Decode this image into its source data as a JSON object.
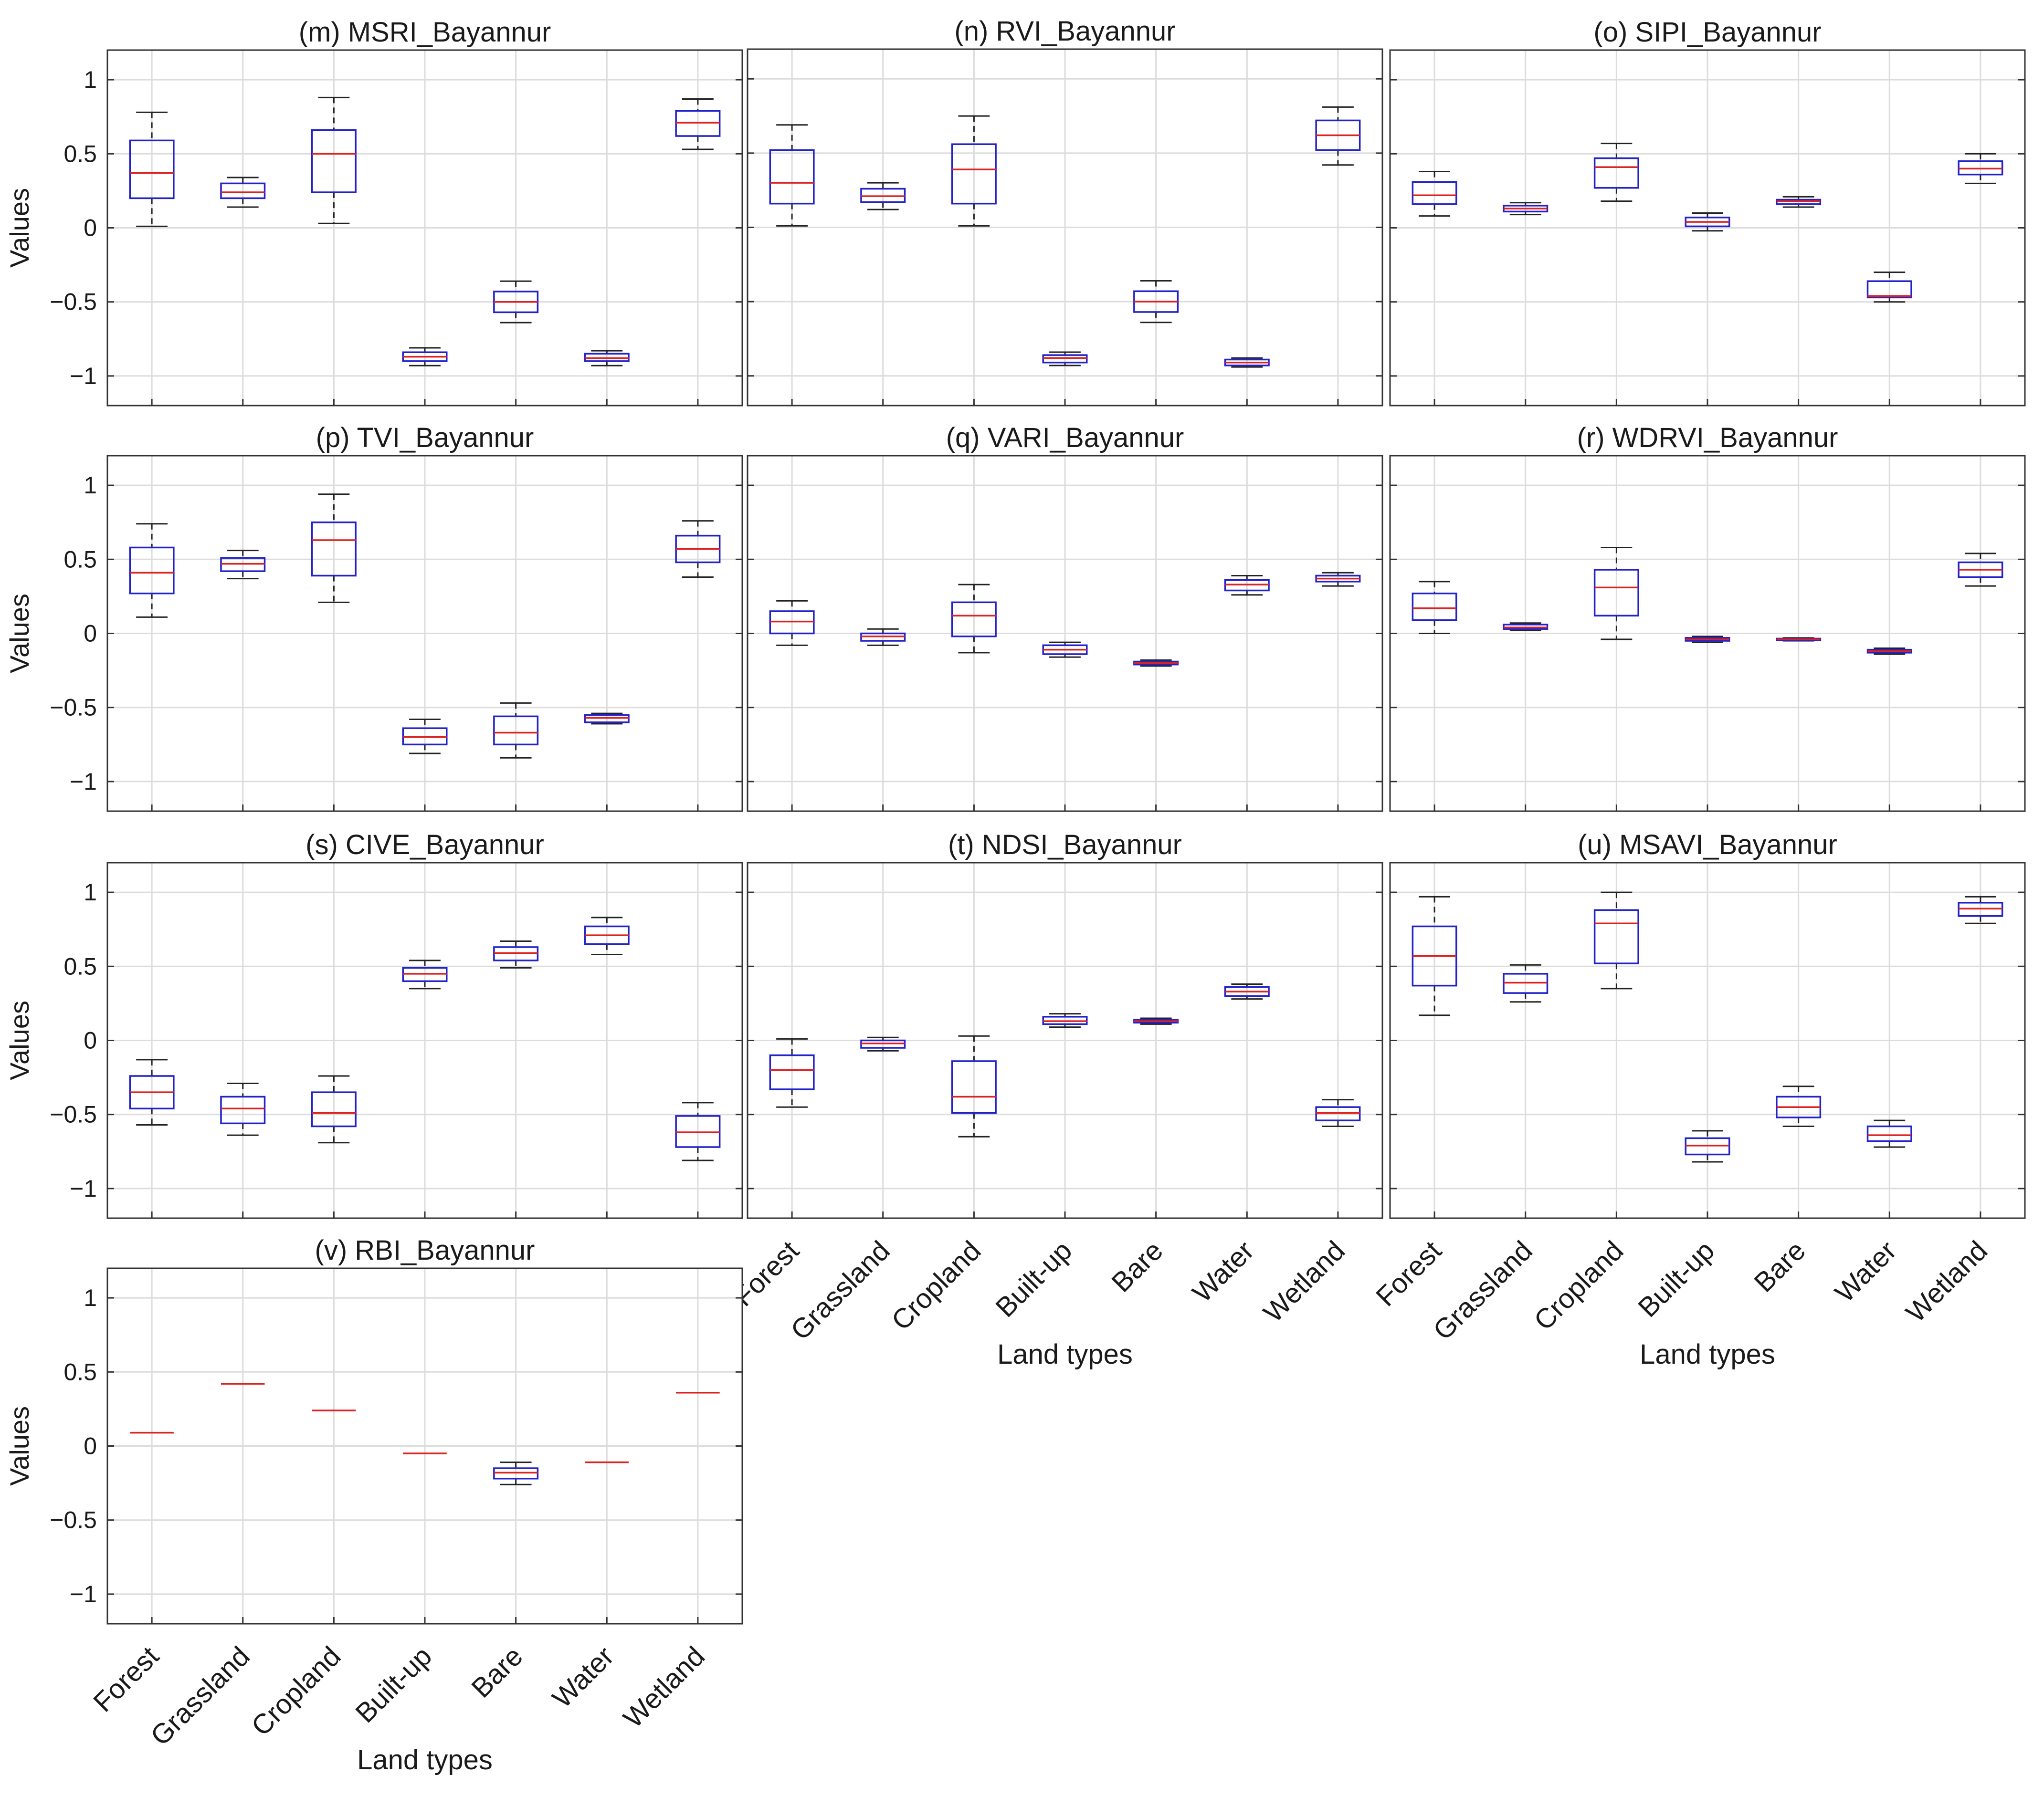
{
  "figure": {
    "x_label": "Land types",
    "y_label": "Values",
    "colors": {
      "box": "#2222cc",
      "median": "#dd2222",
      "whisker": "#222222",
      "grid": "#dcdcdc",
      "frame": "#333333"
    }
  },
  "chart_data": [
    {
      "type": "box",
      "title": "(m) MSRI_Bayannur",
      "categories": [
        "Forest",
        "Grassland",
        "Cropland",
        "Built-up",
        "Bare",
        "Water",
        "Wetland"
      ],
      "ylim": [
        -1.2,
        1.2
      ],
      "yticks": [
        -1,
        -0.5,
        0,
        0.5,
        1
      ],
      "show_xticklabels": false,
      "boxes": [
        {
          "min": 0.01,
          "q1": 0.2,
          "median": 0.37,
          "q3": 0.59,
          "max": 0.78
        },
        {
          "min": 0.14,
          "q1": 0.2,
          "median": 0.24,
          "q3": 0.3,
          "max": 0.34
        },
        {
          "min": 0.03,
          "q1": 0.24,
          "median": 0.5,
          "q3": 0.66,
          "max": 0.88
        },
        {
          "min": -0.93,
          "q1": -0.9,
          "median": -0.87,
          "q3": -0.84,
          "max": -0.81
        },
        {
          "min": -0.64,
          "q1": -0.57,
          "median": -0.5,
          "q3": -0.43,
          "max": -0.36
        },
        {
          "min": -0.93,
          "q1": -0.9,
          "median": -0.88,
          "q3": -0.85,
          "max": -0.83
        },
        {
          "min": 0.53,
          "q1": 0.62,
          "median": 0.71,
          "q3": 0.79,
          "max": 0.87
        }
      ]
    },
    {
      "type": "box",
      "title": "(n) RVI_Bayannur",
      "categories": [
        "Forest",
        "Grassland",
        "Cropland",
        "Built-up",
        "Bare",
        "Water",
        "Wetland"
      ],
      "ylim": [
        -1.2,
        1.2
      ],
      "yticks": [
        -1,
        -0.5,
        0,
        0.5,
        1
      ],
      "show_xticklabels": false,
      "boxes": [
        {
          "min": 0.01,
          "q1": 0.16,
          "median": 0.3,
          "q3": 0.52,
          "max": 0.69
        },
        {
          "min": 0.12,
          "q1": 0.17,
          "median": 0.21,
          "q3": 0.26,
          "max": 0.3
        },
        {
          "min": 0.01,
          "q1": 0.16,
          "median": 0.39,
          "q3": 0.56,
          "max": 0.75
        },
        {
          "min": -0.93,
          "q1": -0.91,
          "median": -0.88,
          "q3": -0.86,
          "max": -0.84
        },
        {
          "min": -0.64,
          "q1": -0.57,
          "median": -0.5,
          "q3": -0.43,
          "max": -0.36
        },
        {
          "min": -0.94,
          "q1": -0.93,
          "median": -0.91,
          "q3": -0.89,
          "max": -0.88
        },
        {
          "min": 0.42,
          "q1": 0.52,
          "median": 0.62,
          "q3": 0.72,
          "max": 0.81
        }
      ]
    },
    {
      "type": "box",
      "title": "(o) SIPI_Bayannur",
      "categories": [
        "Forest",
        "Grassland",
        "Cropland",
        "Built-up",
        "Bare",
        "Water",
        "Wetland"
      ],
      "ylim": [
        -1.2,
        1.2
      ],
      "yticks": [
        -1,
        -0.5,
        0,
        0.5,
        1
      ],
      "show_xticklabels": false,
      "boxes": [
        {
          "min": 0.08,
          "q1": 0.16,
          "median": 0.22,
          "q3": 0.31,
          "max": 0.38
        },
        {
          "min": 0.09,
          "q1": 0.11,
          "median": 0.13,
          "q3": 0.15,
          "max": 0.17
        },
        {
          "min": 0.18,
          "q1": 0.27,
          "median": 0.41,
          "q3": 0.47,
          "max": 0.57
        },
        {
          "min": -0.02,
          "q1": 0.01,
          "median": 0.04,
          "q3": 0.07,
          "max": 0.1
        },
        {
          "min": 0.14,
          "q1": 0.16,
          "median": 0.18,
          "q3": 0.19,
          "max": 0.21
        },
        {
          "min": -0.5,
          "q1": -0.47,
          "median": -0.46,
          "q3": -0.36,
          "max": -0.3
        },
        {
          "min": 0.3,
          "q1": 0.36,
          "median": 0.4,
          "q3": 0.45,
          "max": 0.5
        }
      ]
    },
    {
      "type": "box",
      "title": "(p) TVI_Bayannur",
      "categories": [
        "Forest",
        "Grassland",
        "Cropland",
        "Built-up",
        "Bare",
        "Water",
        "Wetland"
      ],
      "ylim": [
        -1.2,
        1.2
      ],
      "yticks": [
        -1,
        -0.5,
        0,
        0.5,
        1
      ],
      "show_xticklabels": false,
      "boxes": [
        {
          "min": 0.11,
          "q1": 0.27,
          "median": 0.41,
          "q3": 0.58,
          "max": 0.74
        },
        {
          "min": 0.37,
          "q1": 0.42,
          "median": 0.47,
          "q3": 0.51,
          "max": 0.56
        },
        {
          "min": 0.21,
          "q1": 0.39,
          "median": 0.63,
          "q3": 0.75,
          "max": 0.94
        },
        {
          "min": -0.81,
          "q1": -0.75,
          "median": -0.7,
          "q3": -0.64,
          "max": -0.58
        },
        {
          "min": -0.84,
          "q1": -0.75,
          "median": -0.67,
          "q3": -0.56,
          "max": -0.47
        },
        {
          "min": -0.61,
          "q1": -0.6,
          "median": -0.57,
          "q3": -0.55,
          "max": -0.54
        },
        {
          "min": 0.38,
          "q1": 0.48,
          "median": 0.57,
          "q3": 0.66,
          "max": 0.76
        }
      ]
    },
    {
      "type": "box",
      "title": "(q) VARI_Bayannur",
      "categories": [
        "Forest",
        "Grassland",
        "Cropland",
        "Built-up",
        "Bare",
        "Water",
        "Wetland"
      ],
      "ylim": [
        -1.2,
        1.2
      ],
      "yticks": [
        -1,
        -0.5,
        0,
        0.5,
        1
      ],
      "show_xticklabels": false,
      "boxes": [
        {
          "min": -0.08,
          "q1": 0.0,
          "median": 0.08,
          "q3": 0.15,
          "max": 0.22
        },
        {
          "min": -0.08,
          "q1": -0.05,
          "median": -0.02,
          "q3": 0.0,
          "max": 0.03
        },
        {
          "min": -0.13,
          "q1": -0.02,
          "median": 0.12,
          "q3": 0.21,
          "max": 0.33
        },
        {
          "min": -0.16,
          "q1": -0.14,
          "median": -0.11,
          "q3": -0.08,
          "max": -0.06
        },
        {
          "min": -0.22,
          "q1": -0.21,
          "median": -0.2,
          "q3": -0.19,
          "max": -0.18
        },
        {
          "min": 0.26,
          "q1": 0.29,
          "median": 0.33,
          "q3": 0.36,
          "max": 0.39
        },
        {
          "min": 0.32,
          "q1": 0.35,
          "median": 0.37,
          "q3": 0.39,
          "max": 0.41
        }
      ]
    },
    {
      "type": "box",
      "title": "(r) WDRVI_Bayannur",
      "categories": [
        "Forest",
        "Grassland",
        "Cropland",
        "Built-up",
        "Bare",
        "Water",
        "Wetland"
      ],
      "ylim": [
        -1.2,
        1.2
      ],
      "yticks": [
        -1,
        -0.5,
        0,
        0.5,
        1
      ],
      "show_xticklabels": false,
      "boxes": [
        {
          "min": 0.0,
          "q1": 0.09,
          "median": 0.17,
          "q3": 0.27,
          "max": 0.35
        },
        {
          "min": 0.02,
          "q1": 0.03,
          "median": 0.04,
          "q3": 0.06,
          "max": 0.07
        },
        {
          "min": -0.04,
          "q1": 0.12,
          "median": 0.31,
          "q3": 0.43,
          "max": 0.58
        },
        {
          "min": -0.06,
          "q1": -0.05,
          "median": -0.04,
          "q3": -0.03,
          "max": -0.02
        },
        {
          "min": -0.05,
          "q1": -0.045,
          "median": -0.04,
          "q3": -0.035,
          "max": -0.03
        },
        {
          "min": -0.14,
          "q1": -0.13,
          "median": -0.12,
          "q3": -0.11,
          "max": -0.1
        },
        {
          "min": 0.32,
          "q1": 0.38,
          "median": 0.43,
          "q3": 0.48,
          "max": 0.54
        }
      ]
    },
    {
      "type": "box",
      "title": "(s) CIVE_Bayannur",
      "categories": [
        "Forest",
        "Grassland",
        "Cropland",
        "Built-up",
        "Bare",
        "Water",
        "Wetland"
      ],
      "ylim": [
        -1.2,
        1.2
      ],
      "yticks": [
        -1,
        -0.5,
        0,
        0.5,
        1
      ],
      "show_xticklabels": false,
      "boxes": [
        {
          "min": -0.57,
          "q1": -0.46,
          "median": -0.35,
          "q3": -0.24,
          "max": -0.13
        },
        {
          "min": -0.64,
          "q1": -0.56,
          "median": -0.46,
          "q3": -0.38,
          "max": -0.29
        },
        {
          "min": -0.69,
          "q1": -0.58,
          "median": -0.49,
          "q3": -0.35,
          "max": -0.24
        },
        {
          "min": 0.35,
          "q1": 0.4,
          "median": 0.45,
          "q3": 0.49,
          "max": 0.54
        },
        {
          "min": 0.49,
          "q1": 0.54,
          "median": 0.59,
          "q3": 0.63,
          "max": 0.67
        },
        {
          "min": 0.58,
          "q1": 0.65,
          "median": 0.71,
          "q3": 0.77,
          "max": 0.83
        },
        {
          "min": -0.81,
          "q1": -0.72,
          "median": -0.62,
          "q3": -0.51,
          "max": -0.42
        }
      ]
    },
    {
      "type": "box",
      "title": "(t) NDSI_Bayannur",
      "categories": [
        "Forest",
        "Grassland",
        "Cropland",
        "Built-up",
        "Bare",
        "Water",
        "Wetland"
      ],
      "ylim": [
        -1.2,
        1.2
      ],
      "yticks": [
        -1,
        -0.5,
        0,
        0.5,
        1
      ],
      "show_xticklabels": true,
      "boxes": [
        {
          "min": -0.45,
          "q1": -0.33,
          "median": -0.2,
          "q3": -0.1,
          "max": 0.01
        },
        {
          "min": -0.07,
          "q1": -0.05,
          "median": -0.02,
          "q3": 0.0,
          "max": 0.02
        },
        {
          "min": -0.65,
          "q1": -0.49,
          "median": -0.38,
          "q3": -0.14,
          "max": 0.03
        },
        {
          "min": 0.09,
          "q1": 0.11,
          "median": 0.13,
          "q3": 0.16,
          "max": 0.18
        },
        {
          "min": 0.11,
          "q1": 0.12,
          "median": 0.13,
          "q3": 0.14,
          "max": 0.15
        },
        {
          "min": 0.28,
          "q1": 0.3,
          "median": 0.33,
          "q3": 0.36,
          "max": 0.38
        },
        {
          "min": -0.58,
          "q1": -0.54,
          "median": -0.49,
          "q3": -0.45,
          "max": -0.4
        }
      ]
    },
    {
      "type": "box",
      "title": "(u) MSAVI_Bayannur",
      "categories": [
        "Forest",
        "Grassland",
        "Cropland",
        "Built-up",
        "Bare",
        "Water",
        "Wetland"
      ],
      "ylim": [
        -1.2,
        1.2
      ],
      "yticks": [
        -1,
        -0.5,
        0,
        0.5,
        1
      ],
      "show_xticklabels": true,
      "boxes": [
        {
          "min": 0.17,
          "q1": 0.37,
          "median": 0.57,
          "q3": 0.77,
          "max": 0.97
        },
        {
          "min": 0.26,
          "q1": 0.32,
          "median": 0.39,
          "q3": 0.45,
          "max": 0.51
        },
        {
          "min": 0.35,
          "q1": 0.52,
          "median": 0.79,
          "q3": 0.88,
          "max": 1.0
        },
        {
          "min": -0.82,
          "q1": -0.77,
          "median": -0.71,
          "q3": -0.66,
          "max": -0.61
        },
        {
          "min": -0.58,
          "q1": -0.52,
          "median": -0.45,
          "q3": -0.38,
          "max": -0.31
        },
        {
          "min": -0.72,
          "q1": -0.68,
          "median": -0.64,
          "q3": -0.58,
          "max": -0.54
        },
        {
          "min": 0.79,
          "q1": 0.84,
          "median": 0.89,
          "q3": 0.93,
          "max": 0.97
        }
      ]
    },
    {
      "type": "box",
      "title": "(v) RBI_Bayannur",
      "categories": [
        "Forest",
        "Grassland",
        "Cropland",
        "Built-up",
        "Bare",
        "Water",
        "Wetland"
      ],
      "ylim": [
        -1.2,
        1.2
      ],
      "yticks": [
        -1,
        -0.5,
        0,
        0.5,
        1
      ],
      "show_xticklabels": true,
      "boxes": [
        {
          "min": 0.09,
          "q1": 0.09,
          "median": 0.09,
          "q3": 0.09,
          "max": 0.09
        },
        {
          "min": 0.42,
          "q1": 0.42,
          "median": 0.42,
          "q3": 0.42,
          "max": 0.42
        },
        {
          "min": 0.24,
          "q1": 0.24,
          "median": 0.24,
          "q3": 0.24,
          "max": 0.24
        },
        {
          "min": -0.05,
          "q1": -0.05,
          "median": -0.05,
          "q3": -0.05,
          "max": -0.05
        },
        {
          "min": -0.26,
          "q1": -0.22,
          "median": -0.18,
          "q3": -0.15,
          "max": -0.11
        },
        {
          "min": -0.11,
          "q1": -0.11,
          "median": -0.11,
          "q3": -0.11,
          "max": -0.11
        },
        {
          "min": 0.36,
          "q1": 0.36,
          "median": 0.36,
          "q3": 0.36,
          "max": 0.36
        }
      ]
    }
  ]
}
